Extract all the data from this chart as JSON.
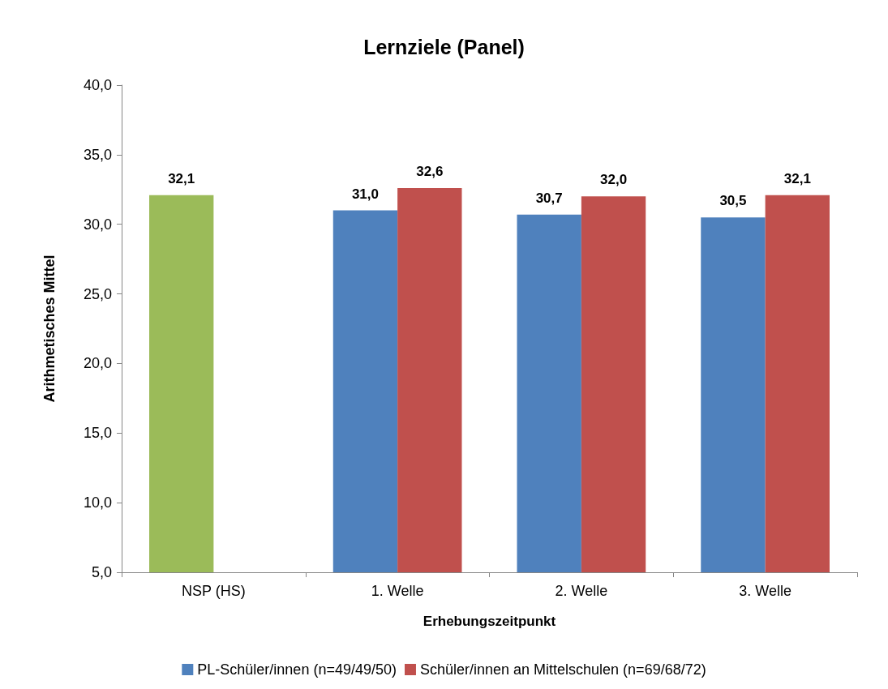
{
  "chart_data": {
    "type": "bar",
    "title": "Lernziele (Panel)",
    "xlabel": "Erhebungszeitpunkt",
    "ylabel": "Arithmetisches Mittel",
    "categories": [
      "NSP (HS)",
      "1. Welle",
      "2. Welle",
      "3. Welle"
    ],
    "series": [
      {
        "name": "PL-Schüler/innen (n=49/49/50)",
        "color": "#4f81bd",
        "colors": [
          "#9bbb59",
          "#4f81bd",
          "#4f81bd",
          "#4f81bd"
        ],
        "values": [
          32.1,
          31.0,
          30.7,
          30.5
        ],
        "value_labels": [
          "32,1",
          "31,0",
          "30,7",
          "30,5"
        ]
      },
      {
        "name": "Schüler/innen an Mittelschulen (n=69/68/72)",
        "color": "#c0504d",
        "values": [
          null,
          32.6,
          32.0,
          32.1
        ],
        "value_labels": [
          null,
          "32,6",
          "32,0",
          "32,1"
        ]
      }
    ],
    "ylim": [
      5,
      40
    ],
    "yticks": [
      {
        "value": 5,
        "label": "5,0"
      },
      {
        "value": 10,
        "label": "10,0"
      },
      {
        "value": 15,
        "label": "15,0"
      },
      {
        "value": 20,
        "label": "20,0"
      },
      {
        "value": 25,
        "label": "25,0"
      },
      {
        "value": 30,
        "label": "30,0"
      },
      {
        "value": 35,
        "label": "35,0"
      },
      {
        "value": 40,
        "label": "40,0"
      }
    ],
    "grid": false,
    "legend": "bottom"
  }
}
